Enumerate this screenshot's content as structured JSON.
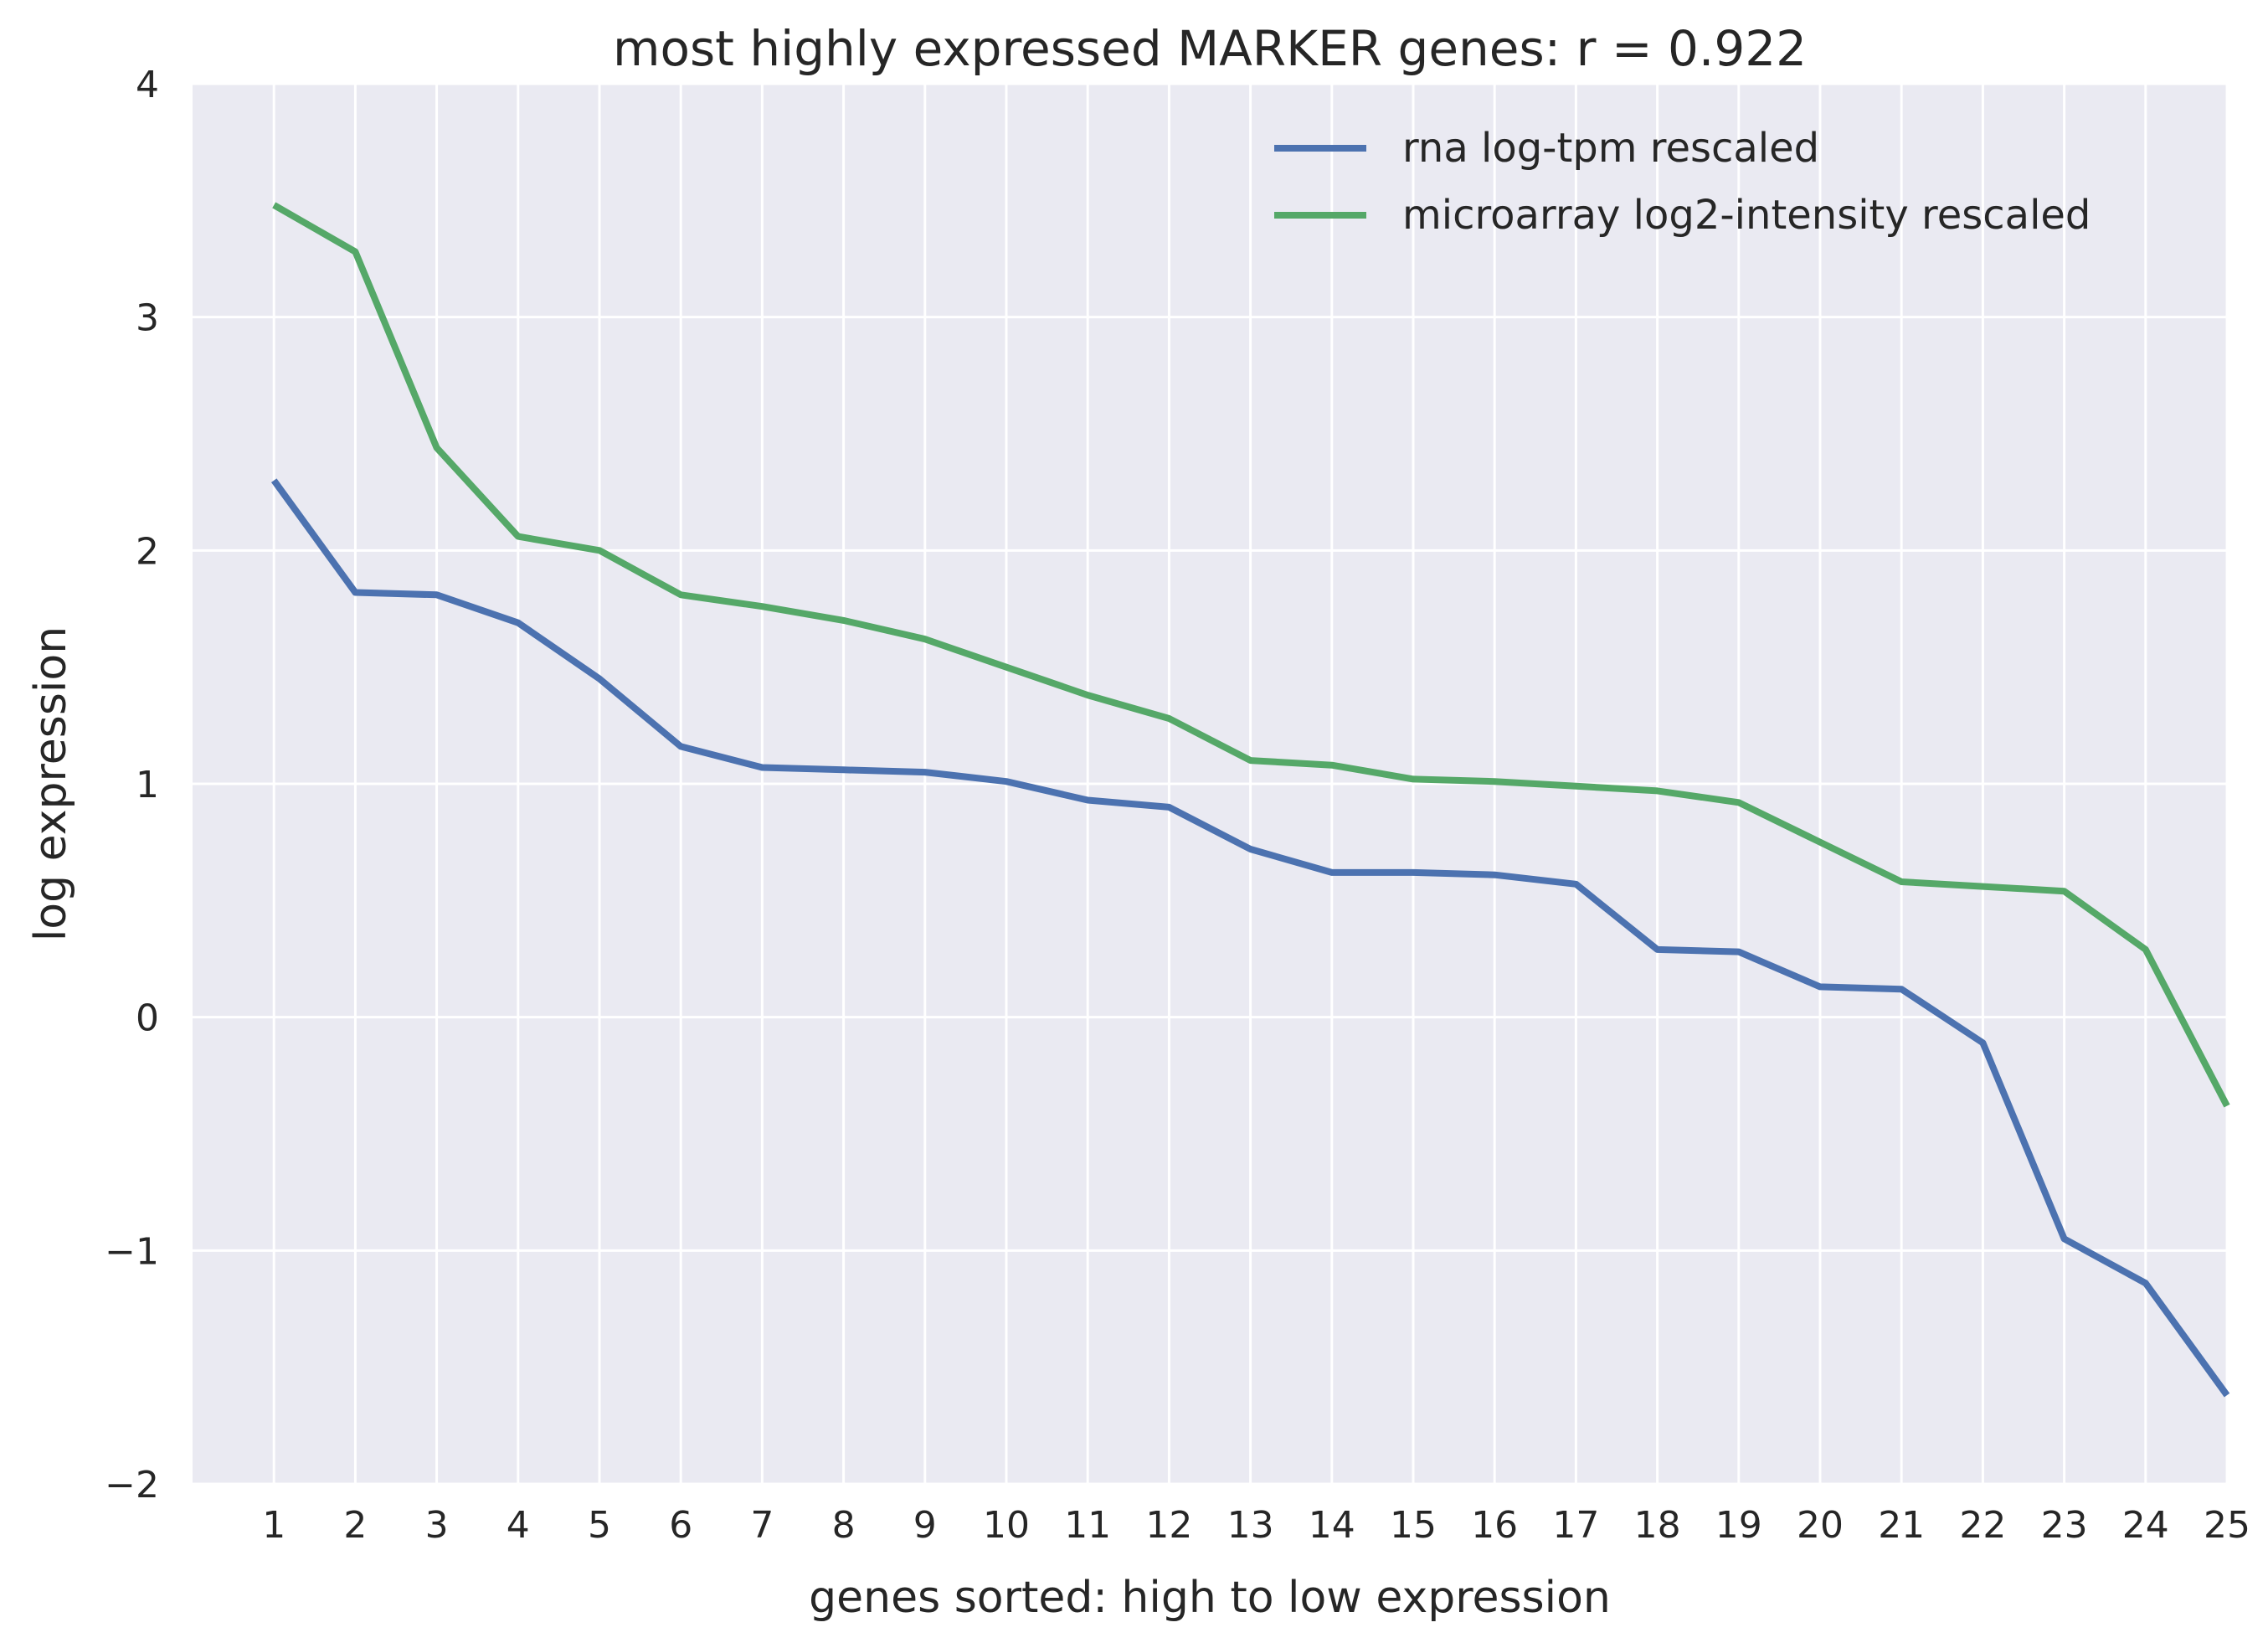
{
  "chart_data": {
    "type": "line",
    "title": "most highly expressed MARKER genes: r = 0.922",
    "xlabel": "genes sorted: high to low expression",
    "ylabel": "log expression",
    "x": [
      1,
      2,
      3,
      4,
      5,
      6,
      7,
      8,
      9,
      10,
      11,
      12,
      13,
      14,
      15,
      16,
      17,
      18,
      19,
      20,
      21,
      22,
      23,
      24,
      25
    ],
    "xlim": [
      0,
      25
    ],
    "ylim": [
      -2,
      4
    ],
    "yticks": [
      -2,
      -1,
      0,
      1,
      2,
      3,
      4
    ],
    "ytick_labels": [
      "−2",
      "−1",
      "0",
      "1",
      "2",
      "3",
      "4"
    ],
    "grid": true,
    "legend_position": "top-right",
    "background_color": "#EAEAF2",
    "series": [
      {
        "name": "rna log-tpm rescaled",
        "color": "#4C72B0",
        "values": [
          2.3,
          1.82,
          1.81,
          1.69,
          1.45,
          1.16,
          1.07,
          1.06,
          1.05,
          1.01,
          0.93,
          0.9,
          0.72,
          0.62,
          0.62,
          0.61,
          0.57,
          0.29,
          0.28,
          0.13,
          0.12,
          -0.11,
          -0.95,
          -1.14,
          -1.62
        ]
      },
      {
        "name": "microarray log2-intensity rescaled",
        "color": "#55A868",
        "values": [
          3.48,
          3.28,
          2.44,
          2.06,
          2.0,
          1.81,
          1.76,
          1.7,
          1.62,
          1.5,
          1.38,
          1.28,
          1.1,
          1.08,
          1.02,
          1.01,
          0.99,
          0.97,
          0.92,
          0.75,
          0.58,
          0.56,
          0.54,
          0.29,
          -0.38
        ]
      }
    ]
  }
}
